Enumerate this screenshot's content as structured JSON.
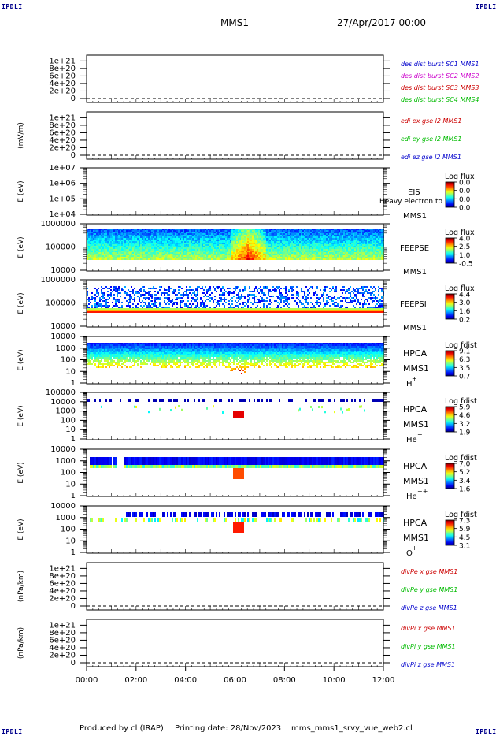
{
  "header": {
    "corner_label": "IPDLI",
    "spacecraft": "MMS1",
    "date": "27/Apr/2017 00:00"
  },
  "footer": {
    "produced_by": "Produced by cl (IRAP)",
    "printing_date": "Printing date: 28/Nov/2023",
    "script": "mms_mms1_srvy_vue_web2.cl"
  },
  "time_axis": {
    "range_hours": [
      0,
      12
    ],
    "ticks": [
      "00:00",
      "02:00",
      "04:00",
      "06:00",
      "08:00",
      "10:00",
      "12:00"
    ]
  },
  "chart_data": [
    {
      "type": "line",
      "ylabel": "",
      "yticks": [
        "1e+21",
        "8e+20",
        "6e+20",
        "4e+20",
        "2e+20",
        "0"
      ],
      "ylim": [
        0,
        1.05e+21
      ],
      "series": [
        {
          "name": "des dist burst SC1 MMS1",
          "color": "#0000cc",
          "values": []
        },
        {
          "name": "des dist burst SC2 MMS2",
          "color": "#cc00cc",
          "values": []
        },
        {
          "name": "des dist burst SC3 MMS3",
          "color": "#cc0000",
          "values": []
        },
        {
          "name": "des dist burst SC4 MMS4",
          "color": "#00bb00",
          "values": []
        }
      ]
    },
    {
      "type": "line",
      "ylabel": "(mV/m)",
      "yticks": [
        "1e+21",
        "8e+20",
        "6e+20",
        "4e+20",
        "2e+20",
        "0"
      ],
      "ylim": [
        0,
        1.05e+21
      ],
      "series": [
        {
          "name": "edi ex gse l2 MMS1",
          "color": "#cc0000",
          "values": []
        },
        {
          "name": "edi ey gse l2 MMS1",
          "color": "#00bb00",
          "values": []
        },
        {
          "name": "edi ez gse l2 MMS1",
          "color": "#0000cc",
          "values": []
        }
      ]
    },
    {
      "type": "heatmap",
      "ylabel": "E (eV)",
      "yticks": [
        "1e+07",
        "1e+06",
        "1e+05",
        "1e+04"
      ],
      "scale": "log",
      "instrument": "EIS",
      "species": "Heavy electron to",
      "spacecraft": "MMS1",
      "colorbar_title": "Log flux",
      "colorbar_ticks": [
        "0.0",
        "0.0",
        "0.0",
        "0.0"
      ],
      "data_present": false
    },
    {
      "type": "heatmap",
      "ylabel": "E (eV)",
      "yticks": [
        "1000000",
        "100000",
        "10000"
      ],
      "scale": "log",
      "instrument": "FEEPSE",
      "spacecraft": "MMS1",
      "colorbar_title": "Log flux",
      "colorbar_ticks": [
        "4.0",
        "2.5",
        "1.0",
        "-0.5"
      ],
      "data_present": true
    },
    {
      "type": "heatmap",
      "ylabel": "E (eV)",
      "yticks": [
        "1000000",
        "100000",
        "10000"
      ],
      "scale": "log",
      "instrument": "FEEPSI",
      "spacecraft": "MMS1",
      "colorbar_title": "Log flux",
      "colorbar_ticks": [
        "4.4",
        "3.0",
        "1.6",
        "0.2"
      ],
      "data_present": true
    },
    {
      "type": "heatmap",
      "ylabel": "E (eV)",
      "yticks": [
        "10000",
        "1000",
        "100",
        "10",
        "1"
      ],
      "scale": "log",
      "instrument": "HPCA",
      "spacecraft": "MMS1",
      "species": "H",
      "species_charge": "+",
      "colorbar_title": "Log fdist",
      "colorbar_ticks": [
        "9.1",
        "6.3",
        "3.5",
        "0.7"
      ],
      "data_present": true
    },
    {
      "type": "heatmap",
      "ylabel": "E (eV)",
      "yticks": [
        "100000",
        "10000",
        "1000",
        "100",
        "10",
        "1"
      ],
      "scale": "log",
      "instrument": "HPCA",
      "spacecraft": "MMS1",
      "species": "He",
      "species_charge": "+",
      "colorbar_title": "Log fdist",
      "colorbar_ticks": [
        "5.9",
        "4.6",
        "3.2",
        "1.9"
      ],
      "data_present": true
    },
    {
      "type": "heatmap",
      "ylabel": "E (eV)",
      "yticks": [
        "10000",
        "1000",
        "100",
        "10",
        "1"
      ],
      "scale": "log",
      "instrument": "HPCA",
      "spacecraft": "MMS1",
      "species": "He",
      "species_charge": "++",
      "colorbar_title": "Log fdist",
      "colorbar_ticks": [
        "7.0",
        "5.2",
        "3.4",
        "1.6"
      ],
      "data_present": true
    },
    {
      "type": "heatmap",
      "ylabel": "E (eV)",
      "yticks": [
        "10000",
        "1000",
        "100",
        "10",
        "1"
      ],
      "scale": "log",
      "instrument": "HPCA",
      "spacecraft": "MMS1",
      "species": "O",
      "species_charge": "+",
      "colorbar_title": "Log fdist",
      "colorbar_ticks": [
        "7.3",
        "5.9",
        "4.5",
        "3.1"
      ],
      "data_present": true
    },
    {
      "type": "line",
      "ylabel": "(nPa/km)",
      "yticks": [
        "1e+21",
        "8e+20",
        "6e+20",
        "4e+20",
        "2e+20",
        "0"
      ],
      "ylim": [
        0,
        1.05e+21
      ],
      "series": [
        {
          "name": "divPe x gse MMS1",
          "color": "#cc0000",
          "values": []
        },
        {
          "name": "divPe y gse MMS1",
          "color": "#00bb00",
          "values": []
        },
        {
          "name": "divPe z gse MMS1",
          "color": "#0000cc",
          "values": []
        }
      ]
    },
    {
      "type": "line",
      "ylabel": "(nPa/km)",
      "yticks": [
        "1e+21",
        "8e+20",
        "6e+20",
        "4e+20",
        "2e+20",
        "0"
      ],
      "ylim": [
        0,
        1.05e+21
      ],
      "series": [
        {
          "name": "divPi x gse MMS1",
          "color": "#cc0000",
          "values": []
        },
        {
          "name": "divPi y gse MMS1",
          "color": "#00bb00",
          "values": []
        },
        {
          "name": "divPi z gse MMS1",
          "color": "#0000cc",
          "values": []
        }
      ]
    }
  ]
}
